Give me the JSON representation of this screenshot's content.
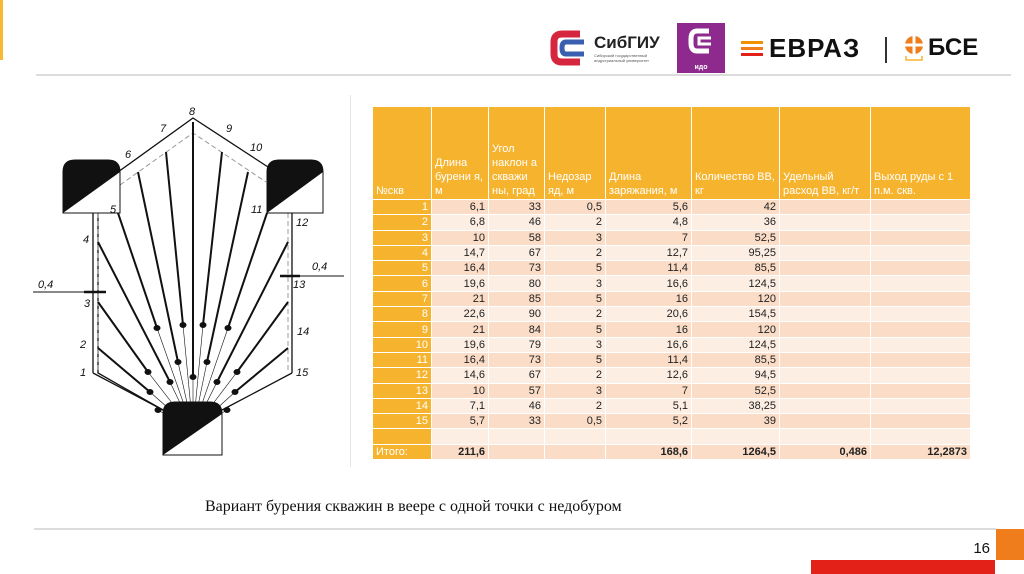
{
  "header": {
    "logos": {
      "sibgiu": "СибГИУ",
      "sibgiu_sub": "Сибирский государственный индустриальный университет",
      "ido": "идо",
      "evraz": "ЕВРАЗ",
      "bse": "БСЕ"
    }
  },
  "diagram": {
    "labels": [
      "1",
      "2",
      "3",
      "4",
      "5",
      "6",
      "7",
      "8",
      "9",
      "10",
      "11",
      "12",
      "13",
      "14",
      "15"
    ],
    "offset_left": "0,4",
    "offset_right": "0,4"
  },
  "table": {
    "headers": [
      "№скв",
      "Длина бурени я, м",
      "Угол наклон а скважи ны, град",
      "Недозар яд, м",
      "Длина заряжания, м",
      "Количество ВВ, кг",
      "Удельный расход ВВ, кг/т",
      "Выход руды с 1 п.м. скв."
    ],
    "rows": [
      [
        "1",
        "6,1",
        "33",
        "0,5",
        "5,6",
        "42",
        "",
        ""
      ],
      [
        "2",
        "6,8",
        "46",
        "2",
        "4,8",
        "36",
        "",
        ""
      ],
      [
        "3",
        "10",
        "58",
        "3",
        "7",
        "52,5",
        "",
        ""
      ],
      [
        "4",
        "14,7",
        "67",
        "2",
        "12,7",
        "95,25",
        "",
        ""
      ],
      [
        "5",
        "16,4",
        "73",
        "5",
        "11,4",
        "85,5",
        "",
        ""
      ],
      [
        "6",
        "19,6",
        "80",
        "3",
        "16,6",
        "124,5",
        "",
        ""
      ],
      [
        "7",
        "21",
        "85",
        "5",
        "16",
        "120",
        "",
        ""
      ],
      [
        "8",
        "22,6",
        "90",
        "2",
        "20,6",
        "154,5",
        "",
        ""
      ],
      [
        "9",
        "21",
        "84",
        "5",
        "16",
        "120",
        "",
        ""
      ],
      [
        "10",
        "19,6",
        "79",
        "3",
        "16,6",
        "124,5",
        "",
        ""
      ],
      [
        "11",
        "16,4",
        "73",
        "5",
        "11,4",
        "85,5",
        "",
        ""
      ],
      [
        "12",
        "14,6",
        "67",
        "2",
        "12,6",
        "94,5",
        "",
        ""
      ],
      [
        "13",
        "10",
        "57",
        "3",
        "7",
        "52,5",
        "",
        ""
      ],
      [
        "14",
        "7,1",
        "46",
        "2",
        "5,1",
        "38,25",
        "",
        ""
      ],
      [
        "15",
        "5,7",
        "33",
        "0,5",
        "5,2",
        "39",
        "",
        ""
      ],
      [
        "",
        "",
        "",
        "",
        "",
        "",
        "",
        ""
      ]
    ],
    "total": [
      "Итого:",
      "211,6",
      "",
      "",
      "168,6",
      "1264,5",
      "0,486",
      "12,2873"
    ]
  },
  "caption": "Вариант бурения скважин в веере с одной точки с недобуром",
  "page_number": "16"
}
